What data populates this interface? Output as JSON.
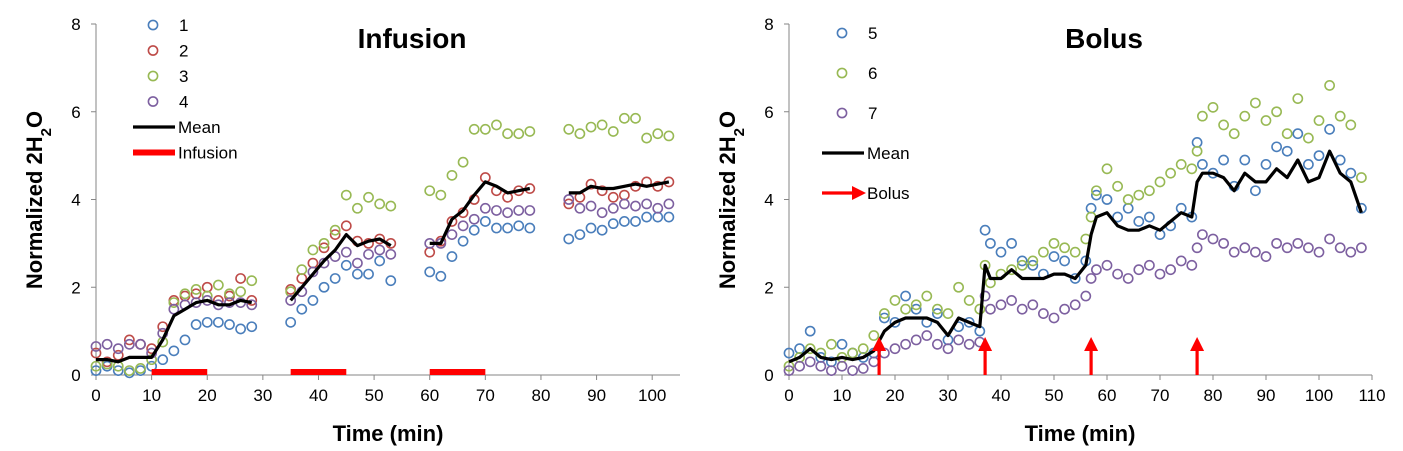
{
  "colors": {
    "s1": "#4a7ebb",
    "s2": "#be4b48",
    "s3": "#98b954",
    "s4": "#7d60a0",
    "s5": "#4a7ebb",
    "s6": "#98b954",
    "s7": "#7d60a0",
    "mean": "#000000",
    "marker": "#ff0000",
    "axis": "#868686"
  },
  "chart_data": [
    {
      "type": "scatter",
      "title": "Infusion",
      "xlabel": "Time (min)",
      "ylabel_main": "Normalized 2H",
      "ylabel_sub": "2",
      "ylabel_tail": "O",
      "xlim": [
        0,
        105
      ],
      "ylim": [
        0,
        8
      ],
      "xticks": [
        "0",
        "10",
        "20",
        "30",
        "40",
        "50",
        "60",
        "70",
        "80",
        "90",
        "100"
      ],
      "yticks": [
        "0",
        "2",
        "4",
        "6",
        "8"
      ],
      "legend": [
        {
          "label": "1",
          "kind": "circle",
          "color": "#4a7ebb"
        },
        {
          "label": "2",
          "kind": "circle",
          "color": "#be4b48"
        },
        {
          "label": "3",
          "kind": "circle",
          "color": "#98b954"
        },
        {
          "label": "4",
          "kind": "circle",
          "color": "#7d60a0"
        },
        {
          "label": "Mean",
          "kind": "line",
          "color": "#000000"
        },
        {
          "label": "Infusion",
          "kind": "bar",
          "color": "#ff0000"
        }
      ],
      "series": [
        {
          "name": "1",
          "color": "#4a7ebb",
          "x": [
            0,
            2,
            4,
            6,
            8,
            10,
            12,
            14,
            16,
            18,
            20,
            22,
            24,
            26,
            28,
            35,
            37,
            39,
            41,
            43,
            45,
            47,
            49,
            51,
            53,
            60,
            62,
            64,
            66,
            68,
            70,
            72,
            74,
            76,
            78,
            85,
            87,
            89,
            91,
            93,
            95,
            97,
            99,
            101,
            103
          ],
          "y": [
            0.1,
            0.2,
            0.1,
            0.05,
            0.1,
            0.2,
            0.35,
            0.55,
            0.8,
            1.15,
            1.2,
            1.2,
            1.15,
            1.05,
            1.1,
            1.2,
            1.5,
            1.7,
            2.0,
            2.2,
            2.5,
            2.3,
            2.3,
            2.6,
            2.15,
            2.35,
            2.25,
            2.7,
            3.05,
            3.3,
            3.5,
            3.35,
            3.35,
            3.4,
            3.35,
            3.1,
            3.2,
            3.35,
            3.3,
            3.45,
            3.5,
            3.5,
            3.6,
            3.6,
            3.6
          ]
        },
        {
          "name": "2",
          "color": "#be4b48",
          "x": [
            0,
            2,
            4,
            6,
            8,
            10,
            12,
            14,
            16,
            18,
            20,
            22,
            24,
            26,
            28,
            35,
            37,
            39,
            41,
            43,
            45,
            47,
            49,
            51,
            53,
            60,
            62,
            64,
            66,
            68,
            70,
            72,
            74,
            76,
            78,
            85,
            87,
            89,
            91,
            93,
            95,
            97,
            99,
            101,
            103
          ],
          "y": [
            0.5,
            0.3,
            0.45,
            0.8,
            0.7,
            0.6,
            1.1,
            1.7,
            1.8,
            1.85,
            2.0,
            1.7,
            1.8,
            2.2,
            1.7,
            1.95,
            2.2,
            2.55,
            2.9,
            3.2,
            3.4,
            3.05,
            3.0,
            3.1,
            3.0,
            2.8,
            3.05,
            3.5,
            3.7,
            4.0,
            4.5,
            4.2,
            4.05,
            4.2,
            4.25,
            3.9,
            4.05,
            4.35,
            4.2,
            4.05,
            4.1,
            4.3,
            4.4,
            4.3,
            4.4
          ]
        },
        {
          "name": "3",
          "color": "#98b954",
          "x": [
            0,
            2,
            4,
            6,
            8,
            10,
            12,
            14,
            16,
            18,
            20,
            22,
            24,
            26,
            28,
            35,
            37,
            39,
            41,
            43,
            45,
            47,
            49,
            51,
            53,
            60,
            62,
            64,
            66,
            68,
            70,
            72,
            74,
            76,
            78,
            85,
            87,
            89,
            91,
            93,
            95,
            97,
            99,
            101,
            103
          ],
          "y": [
            0.2,
            0.25,
            0.2,
            0.1,
            0.15,
            0.35,
            0.75,
            1.65,
            1.85,
            1.95,
            1.8,
            2.05,
            1.85,
            1.9,
            2.15,
            1.9,
            2.4,
            2.85,
            3.0,
            3.3,
            4.1,
            3.8,
            4.05,
            3.9,
            3.85,
            4.2,
            4.1,
            4.55,
            4.85,
            5.6,
            5.6,
            5.7,
            5.5,
            5.5,
            5.55,
            5.6,
            5.5,
            5.65,
            5.7,
            5.55,
            5.85,
            5.85,
            5.4,
            5.5,
            5.45
          ]
        },
        {
          "name": "4",
          "color": "#7d60a0",
          "x": [
            0,
            2,
            4,
            6,
            8,
            10,
            12,
            14,
            16,
            18,
            20,
            22,
            24,
            26,
            28,
            35,
            37,
            39,
            41,
            43,
            45,
            47,
            49,
            51,
            53,
            60,
            62,
            64,
            66,
            68,
            70,
            72,
            74,
            76,
            78,
            85,
            87,
            89,
            91,
            93,
            95,
            97,
            99,
            101,
            103
          ],
          "y": [
            0.65,
            0.7,
            0.6,
            0.7,
            0.7,
            0.5,
            0.95,
            1.5,
            1.6,
            1.65,
            1.7,
            1.6,
            1.65,
            1.65,
            1.6,
            1.7,
            1.9,
            2.35,
            2.55,
            2.7,
            2.8,
            2.55,
            2.75,
            2.85,
            2.75,
            3.0,
            3.0,
            3.2,
            3.4,
            3.55,
            3.8,
            3.75,
            3.7,
            3.75,
            3.75,
            4.0,
            3.8,
            3.85,
            3.7,
            3.8,
            3.9,
            3.85,
            3.9,
            3.8,
            3.9
          ]
        }
      ],
      "mean_segments": [
        {
          "x": [
            0,
            2,
            4,
            6,
            8,
            10,
            12,
            14,
            16,
            18,
            20,
            22,
            24,
            26,
            28
          ],
          "y": [
            0.35,
            0.35,
            0.3,
            0.4,
            0.4,
            0.4,
            0.8,
            1.35,
            1.5,
            1.65,
            1.7,
            1.6,
            1.6,
            1.7,
            1.65
          ]
        },
        {
          "x": [
            35,
            37,
            39,
            41,
            43,
            45,
            47,
            49,
            51,
            53
          ],
          "y": [
            1.7,
            2.0,
            2.3,
            2.6,
            2.85,
            3.2,
            2.95,
            3.05,
            3.1,
            2.95
          ]
        },
        {
          "x": [
            60,
            62,
            64,
            66,
            68,
            70,
            72,
            74,
            76,
            78
          ],
          "y": [
            3.0,
            3.0,
            3.55,
            3.75,
            4.1,
            4.4,
            4.3,
            4.15,
            4.2,
            4.25
          ]
        },
        {
          "x": [
            85,
            87,
            89,
            91,
            93,
            95,
            97,
            99,
            101,
            103
          ],
          "y": [
            4.15,
            4.15,
            4.3,
            4.25,
            4.25,
            4.3,
            4.35,
            4.3,
            4.35,
            4.4
          ]
        }
      ],
      "infusion_periods": [
        [
          10,
          20
        ],
        [
          35,
          45
        ],
        [
          60,
          70
        ]
      ]
    },
    {
      "type": "scatter",
      "title": "Bolus",
      "xlabel": "Time (min)",
      "ylabel_main": "Normalized 2H",
      "ylabel_sub": "2",
      "ylabel_tail": "O",
      "xlim": [
        0,
        110
      ],
      "ylim": [
        0,
        8
      ],
      "xticks": [
        "0",
        "10",
        "20",
        "30",
        "40",
        "50",
        "60",
        "70",
        "80",
        "90",
        "100",
        "110"
      ],
      "yticks": [
        "0",
        "2",
        "4",
        "6",
        "8"
      ],
      "legend": [
        {
          "label": "5",
          "kind": "circle",
          "color": "#4a7ebb"
        },
        {
          "label": "6",
          "kind": "circle",
          "color": "#98b954"
        },
        {
          "label": "7",
          "kind": "circle",
          "color": "#7d60a0"
        },
        {
          "label": "Mean",
          "kind": "line",
          "color": "#000000"
        },
        {
          "label": "Bolus",
          "kind": "arrow",
          "color": "#ff0000"
        }
      ],
      "series": [
        {
          "name": "5",
          "color": "#4a7ebb",
          "x": [
            0,
            2,
            4,
            6,
            8,
            10,
            12,
            14,
            16,
            18,
            20,
            22,
            24,
            26,
            28,
            30,
            32,
            34,
            36,
            37,
            38,
            40,
            42,
            44,
            46,
            48,
            50,
            52,
            54,
            56,
            57,
            58,
            60,
            62,
            64,
            66,
            68,
            70,
            72,
            74,
            76,
            77,
            78,
            80,
            82,
            84,
            86,
            88,
            90,
            92,
            94,
            96,
            98,
            100,
            102,
            104,
            106,
            108
          ],
          "y": [
            0.5,
            0.6,
            1.0,
            0.4,
            0.3,
            0.7,
            0.5,
            0.4,
            0.5,
            1.3,
            1.2,
            1.8,
            1.5,
            1.2,
            1.4,
            0.8,
            1.1,
            1.2,
            1.0,
            3.3,
            3.0,
            2.8,
            3.0,
            2.6,
            2.5,
            2.3,
            2.7,
            2.6,
            2.2,
            2.6,
            3.8,
            4.1,
            4.0,
            3.6,
            3.8,
            3.5,
            3.6,
            3.2,
            3.4,
            3.8,
            3.6,
            5.3,
            4.8,
            4.6,
            4.9,
            4.3,
            4.9,
            4.2,
            4.8,
            5.2,
            5.1,
            5.5,
            4.8,
            5.0,
            5.6,
            4.9,
            4.6,
            3.8
          ]
        },
        {
          "name": "6",
          "color": "#98b954",
          "x": [
            0,
            2,
            4,
            6,
            8,
            10,
            12,
            14,
            16,
            18,
            20,
            22,
            24,
            26,
            28,
            30,
            32,
            34,
            36,
            37,
            38,
            40,
            42,
            44,
            46,
            48,
            50,
            52,
            54,
            56,
            57,
            58,
            60,
            62,
            64,
            66,
            68,
            70,
            72,
            74,
            76,
            77,
            78,
            80,
            82,
            84,
            86,
            88,
            90,
            92,
            94,
            96,
            98,
            100,
            102,
            104,
            106,
            108
          ],
          "y": [
            0.2,
            0.4,
            0.6,
            0.5,
            0.7,
            0.4,
            0.5,
            0.6,
            0.9,
            1.4,
            1.7,
            1.5,
            1.6,
            1.8,
            1.5,
            1.4,
            2.0,
            1.7,
            1.5,
            2.5,
            2.1,
            2.3,
            2.4,
            2.5,
            2.6,
            2.8,
            3.0,
            2.9,
            2.8,
            3.1,
            3.6,
            4.2,
            4.7,
            4.3,
            4.0,
            4.1,
            4.2,
            4.4,
            4.6,
            4.8,
            4.7,
            5.1,
            5.9,
            6.1,
            5.7,
            5.5,
            5.9,
            6.2,
            5.8,
            6.0,
            5.5,
            6.3,
            5.4,
            5.8,
            6.6,
            5.9,
            5.7,
            4.5
          ]
        },
        {
          "name": "7",
          "color": "#7d60a0",
          "x": [
            0,
            2,
            4,
            6,
            8,
            10,
            12,
            14,
            16,
            18,
            20,
            22,
            24,
            26,
            28,
            30,
            32,
            34,
            36,
            37,
            38,
            40,
            42,
            44,
            46,
            48,
            50,
            52,
            54,
            56,
            57,
            58,
            60,
            62,
            64,
            66,
            68,
            70,
            72,
            74,
            76,
            77,
            78,
            80,
            82,
            84,
            86,
            88,
            90,
            92,
            94,
            96,
            98,
            100,
            102,
            104,
            106,
            108
          ],
          "y": [
            0.1,
            0.2,
            0.3,
            0.2,
            0.1,
            0.2,
            0.1,
            0.15,
            0.3,
            0.5,
            0.6,
            0.7,
            0.8,
            0.9,
            0.7,
            0.6,
            0.8,
            0.7,
            0.75,
            1.8,
            1.5,
            1.6,
            1.7,
            1.5,
            1.6,
            1.4,
            1.3,
            1.5,
            1.6,
            1.8,
            2.2,
            2.4,
            2.5,
            2.3,
            2.2,
            2.4,
            2.5,
            2.3,
            2.4,
            2.6,
            2.5,
            2.9,
            3.2,
            3.1,
            3.0,
            2.8,
            2.9,
            2.8,
            2.7,
            3.0,
            2.9,
            3.0,
            2.9,
            2.8,
            3.1,
            2.9,
            2.8,
            2.9
          ]
        }
      ],
      "mean_segments": [
        {
          "x": [
            0,
            2,
            4,
            6,
            8,
            10,
            12,
            14,
            16,
            18,
            20,
            22,
            24,
            26,
            28,
            30,
            32,
            34,
            36,
            37,
            38,
            40,
            42,
            44,
            46,
            48,
            50,
            52,
            54,
            56,
            57,
            58,
            60,
            62,
            64,
            66,
            68,
            70,
            72,
            74,
            76,
            77,
            78,
            80,
            82,
            84,
            86,
            88,
            90,
            92,
            94,
            96,
            98,
            100,
            102,
            104,
            106,
            108
          ],
          "y": [
            0.3,
            0.4,
            0.6,
            0.4,
            0.35,
            0.4,
            0.35,
            0.4,
            0.55,
            1.0,
            1.2,
            1.3,
            1.3,
            1.3,
            1.2,
            0.9,
            1.3,
            1.2,
            1.1,
            2.5,
            2.2,
            2.2,
            2.4,
            2.2,
            2.2,
            2.2,
            2.3,
            2.3,
            2.2,
            2.5,
            3.2,
            3.6,
            3.7,
            3.4,
            3.3,
            3.3,
            3.4,
            3.3,
            3.5,
            3.7,
            3.6,
            4.4,
            4.6,
            4.6,
            4.5,
            4.2,
            4.6,
            4.4,
            4.4,
            4.7,
            4.5,
            4.9,
            4.4,
            4.5,
            5.1,
            4.6,
            4.4,
            3.7
          ]
        }
      ],
      "bolus_times": [
        17,
        37,
        57,
        77
      ]
    }
  ]
}
